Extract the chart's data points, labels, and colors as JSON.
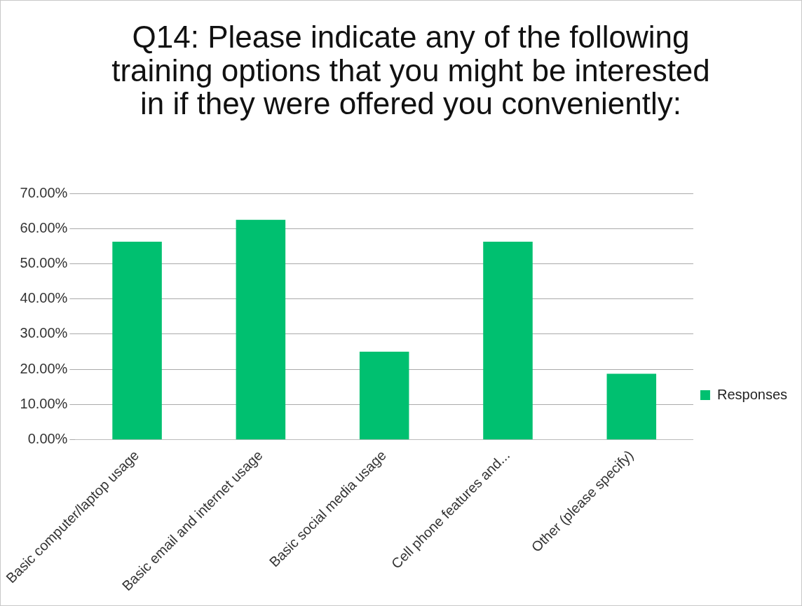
{
  "chart_data": {
    "type": "bar",
    "title": "Q14: Please indicate any of the following training options that you might be interested in if they were offered you conveniently:",
    "categories": [
      "Basic computer/laptop usage",
      "Basic email and internet usage",
      "Basic social media usage",
      "Cell phone features and...",
      "Other (please specify)"
    ],
    "series": [
      {
        "name": "Responses",
        "color": "#00c070",
        "values": [
          56.25,
          62.5,
          25,
          56.25,
          18.75
        ]
      }
    ],
    "ylim": [
      0,
      70
    ],
    "yticks": [
      {
        "value": 0,
        "label": "0.00%"
      },
      {
        "value": 10,
        "label": "10.00%"
      },
      {
        "value": 20,
        "label": "20.00%"
      },
      {
        "value": 30,
        "label": "30.00%"
      },
      {
        "value": 40,
        "label": "40.00%"
      },
      {
        "value": 50,
        "label": "50.00%"
      },
      {
        "value": 60,
        "label": "60.00%"
      },
      {
        "value": 70,
        "label": "70.00%"
      }
    ],
    "grid": "y",
    "legend": "right"
  }
}
